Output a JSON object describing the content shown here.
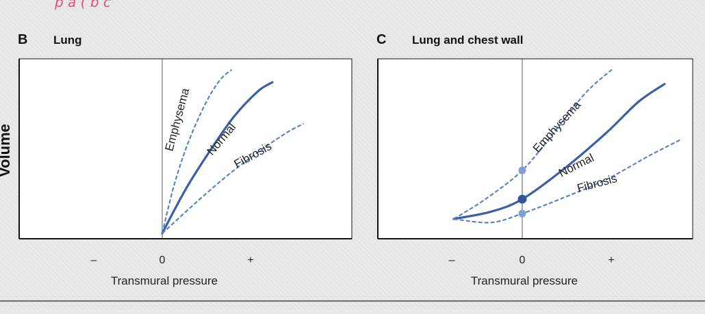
{
  "colors": {
    "curve": "#3a5fa8",
    "dashed": "#5d82c4",
    "dot_normal": "#34559c",
    "dot_other": "#7f9fd6",
    "handwriting": "#e44d8a"
  },
  "annotations": {
    "handwriting_fragment": "p a ( b c"
  },
  "chart_data": [
    {
      "type": "line",
      "panel_letter": "B",
      "title": "Lung",
      "ylabel": "Volume",
      "xlabel": "Transmural pressure",
      "x_ticks": [
        "–",
        "0",
        "+"
      ],
      "xlim": [
        -3,
        3
      ],
      "ylim": [
        0,
        10
      ],
      "grid": false,
      "series": [
        {
          "name": "Emphysema",
          "style": "dashed",
          "x": [
            0,
            0.25,
            0.55,
            0.9,
            1.2,
            1.45
          ],
          "y": [
            0.3,
            3.0,
            5.4,
            7.5,
            8.8,
            9.4
          ]
        },
        {
          "name": "Normal",
          "style": "solid",
          "x": [
            0,
            0.5,
            1.0,
            1.5,
            2.0,
            2.3
          ],
          "y": [
            0.3,
            2.8,
            4.9,
            6.8,
            8.2,
            8.7
          ]
        },
        {
          "name": "Fibrosis",
          "style": "dashed",
          "x": [
            0,
            0.7,
            1.4,
            2.1,
            2.6,
            2.95
          ],
          "y": [
            0.3,
            2.0,
            3.6,
            5.0,
            5.9,
            6.4
          ]
        }
      ],
      "markers": []
    },
    {
      "type": "line",
      "panel_letter": "C",
      "title": "Lung and chest wall",
      "ylabel": "",
      "xlabel": "Transmural pressure",
      "x_ticks": [
        "–",
        "0",
        "+"
      ],
      "xlim": [
        -3,
        3
      ],
      "ylim": [
        0,
        10
      ],
      "grid": false,
      "series": [
        {
          "name": "Emphysema",
          "style": "dashed",
          "x": [
            -1.3,
            -0.7,
            0,
            0.6,
            1.2,
            1.7
          ],
          "y": [
            1.1,
            2.2,
            3.8,
            5.9,
            8.1,
            9.4
          ]
        },
        {
          "name": "Normal",
          "style": "solid",
          "x": [
            -1.3,
            -0.6,
            0,
            0.8,
            1.6,
            2.2,
            2.7
          ],
          "y": [
            1.1,
            1.5,
            2.2,
            3.9,
            5.9,
            7.6,
            8.6
          ]
        },
        {
          "name": "Fibrosis",
          "style": "dashed",
          "x": [
            -1.3,
            -0.6,
            0,
            0.8,
            1.6,
            2.4,
            3.0
          ],
          "y": [
            1.1,
            0.9,
            1.4,
            2.3,
            3.3,
            4.6,
            5.5
          ]
        }
      ],
      "markers": [
        {
          "series": "Emphysema",
          "x": 0,
          "y": 3.8
        },
        {
          "series": "Normal",
          "x": 0,
          "y": 2.2
        },
        {
          "series": "Fibrosis",
          "x": 0,
          "y": 1.4
        }
      ]
    }
  ]
}
